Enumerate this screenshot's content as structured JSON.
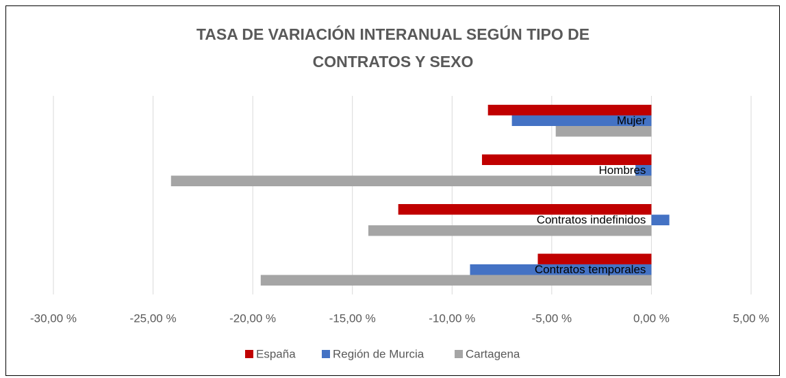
{
  "chart_data": {
    "type": "hbar",
    "title": "TASA DE VARIACIÓN INTERANUAL SEGÚN TIPO DE CONTRATOS Y SEXO",
    "categories": [
      "Mujer",
      "Hombres",
      "Contratos indefinidos",
      "Contratos temporales"
    ],
    "series": [
      {
        "name": "España",
        "color": "#c00000",
        "values": [
          -8.2,
          -8.5,
          -12.7,
          -5.7
        ]
      },
      {
        "name": "Región de Murcia",
        "color": "#4472c4",
        "values": [
          -7.0,
          -0.8,
          0.9,
          -9.1
        ]
      },
      {
        "name": "Cartagena",
        "color": "#a5a5a5",
        "values": [
          -4.8,
          -24.1,
          -14.2,
          -19.6
        ]
      }
    ],
    "xlim": [
      -30,
      5
    ],
    "xticks": [
      {
        "value": -30,
        "label": "-30,00 %"
      },
      {
        "value": -25,
        "label": "-25,00 %"
      },
      {
        "value": -20,
        "label": "-20,00 %"
      },
      {
        "value": -15,
        "label": "-15,00 %"
      },
      {
        "value": -10,
        "label": "-10,00 %"
      },
      {
        "value": -5,
        "label": "-5,00 %"
      },
      {
        "value": 0,
        "label": "0,00 %"
      },
      {
        "value": 5,
        "label": "5,00 %"
      }
    ],
    "grid": true,
    "legend": "bottom"
  }
}
